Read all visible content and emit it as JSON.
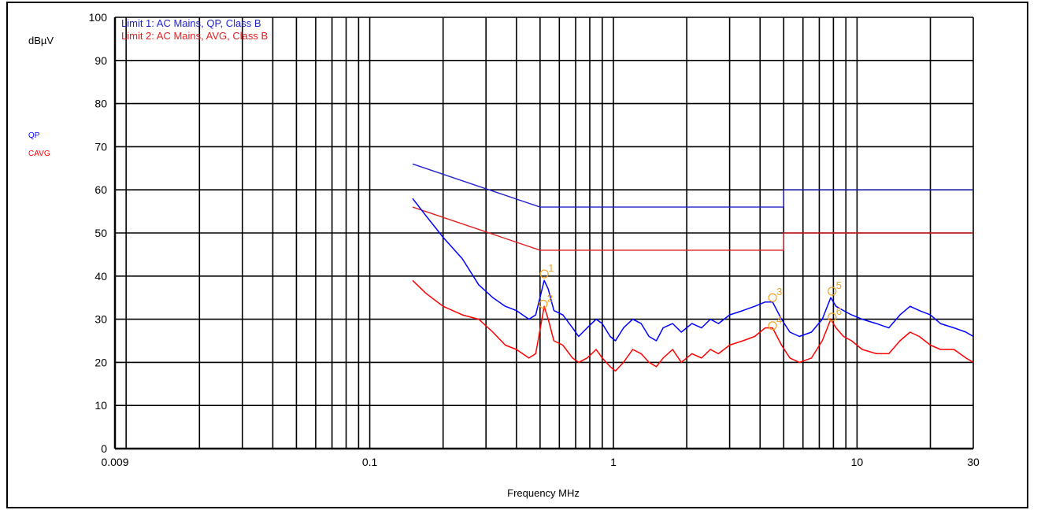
{
  "chart_data": {
    "type": "line",
    "xlabel": "Frequency MHz",
    "ylabel": "dBµV",
    "xscale": "log",
    "xlim": [
      0.009,
      30
    ],
    "ylim": [
      0,
      100
    ],
    "grid": true,
    "x_tick_labels": [
      {
        "value": 0.009,
        "label": "0.009"
      },
      {
        "value": 0.1,
        "label": "0.1"
      },
      {
        "value": 1,
        "label": "1"
      },
      {
        "value": 10,
        "label": "10"
      },
      {
        "value": 30,
        "label": "30"
      }
    ],
    "y_ticks": [
      0,
      10,
      20,
      30,
      40,
      50,
      60,
      70,
      80,
      90,
      100
    ],
    "legend": {
      "placement": "top-left",
      "entries": [
        {
          "label": "Limit 1: AC Mains, QP, Class B",
          "color": "#2222cc"
        },
        {
          "label": "Limit 2: AC Mains, AVG, Class B",
          "color": "#dd2222"
        }
      ]
    },
    "trace_legend": [
      {
        "label": "QP",
        "color": "#0000ff"
      },
      {
        "label": "CAVG",
        "color": "#ff0000"
      }
    ],
    "limits": [
      {
        "color": "#2222cc",
        "points": [
          [
            0.15,
            66
          ],
          [
            0.5,
            56
          ],
          [
            5,
            56
          ],
          [
            5,
            60
          ],
          [
            30,
            60
          ]
        ]
      },
      {
        "color": "#dd2222",
        "points": [
          [
            0.15,
            56
          ],
          [
            0.5,
            46
          ],
          [
            5,
            46
          ],
          [
            5,
            50
          ],
          [
            30,
            50
          ]
        ]
      }
    ],
    "series": [
      {
        "color": "#0000ff",
        "points": [
          [
            0.15,
            58
          ],
          [
            0.17,
            54
          ],
          [
            0.2,
            49
          ],
          [
            0.24,
            44
          ],
          [
            0.28,
            38
          ],
          [
            0.32,
            35
          ],
          [
            0.36,
            33
          ],
          [
            0.4,
            32
          ],
          [
            0.45,
            30
          ],
          [
            0.48,
            31
          ],
          [
            0.52,
            39
          ],
          [
            0.54,
            37
          ],
          [
            0.57,
            32
          ],
          [
            0.62,
            31
          ],
          [
            0.68,
            28
          ],
          [
            0.72,
            26
          ],
          [
            0.78,
            28
          ],
          [
            0.85,
            30
          ],
          [
            0.9,
            29
          ],
          [
            0.97,
            26
          ],
          [
            1.02,
            25
          ],
          [
            1.1,
            28
          ],
          [
            1.2,
            30
          ],
          [
            1.3,
            29
          ],
          [
            1.4,
            26
          ],
          [
            1.5,
            25
          ],
          [
            1.6,
            28
          ],
          [
            1.75,
            29
          ],
          [
            1.9,
            27
          ],
          [
            2.1,
            29
          ],
          [
            2.3,
            28
          ],
          [
            2.5,
            30
          ],
          [
            2.7,
            29
          ],
          [
            3.0,
            31
          ],
          [
            3.4,
            32
          ],
          [
            3.8,
            33
          ],
          [
            4.2,
            34
          ],
          [
            4.5,
            34
          ],
          [
            4.9,
            30
          ],
          [
            5.3,
            27
          ],
          [
            5.8,
            26
          ],
          [
            6.5,
            27
          ],
          [
            7.2,
            30
          ],
          [
            7.8,
            35
          ],
          [
            8.2,
            33
          ],
          [
            8.8,
            32
          ],
          [
            9.5,
            31
          ],
          [
            10.5,
            30
          ],
          [
            12,
            29
          ],
          [
            13.5,
            28
          ],
          [
            15,
            31
          ],
          [
            16.5,
            33
          ],
          [
            18,
            32
          ],
          [
            20,
            31
          ],
          [
            22,
            29
          ],
          [
            25,
            28
          ],
          [
            28,
            27
          ],
          [
            30,
            26
          ]
        ]
      },
      {
        "color": "#ff0000",
        "points": [
          [
            0.15,
            39
          ],
          [
            0.17,
            36
          ],
          [
            0.2,
            33
          ],
          [
            0.24,
            31
          ],
          [
            0.28,
            30
          ],
          [
            0.32,
            27
          ],
          [
            0.36,
            24
          ],
          [
            0.4,
            23
          ],
          [
            0.45,
            21
          ],
          [
            0.48,
            22
          ],
          [
            0.52,
            33
          ],
          [
            0.54,
            30
          ],
          [
            0.57,
            25
          ],
          [
            0.62,
            24
          ],
          [
            0.68,
            21
          ],
          [
            0.72,
            20
          ],
          [
            0.78,
            21
          ],
          [
            0.85,
            23
          ],
          [
            0.9,
            21
          ],
          [
            0.97,
            19
          ],
          [
            1.02,
            18
          ],
          [
            1.1,
            20
          ],
          [
            1.2,
            23
          ],
          [
            1.3,
            22
          ],
          [
            1.4,
            20
          ],
          [
            1.5,
            19
          ],
          [
            1.6,
            21
          ],
          [
            1.75,
            23
          ],
          [
            1.9,
            20
          ],
          [
            2.1,
            22
          ],
          [
            2.3,
            21
          ],
          [
            2.5,
            23
          ],
          [
            2.7,
            22
          ],
          [
            3.0,
            24
          ],
          [
            3.4,
            25
          ],
          [
            3.8,
            26
          ],
          [
            4.2,
            28
          ],
          [
            4.5,
            28
          ],
          [
            4.9,
            24
          ],
          [
            5.3,
            21
          ],
          [
            5.8,
            20
          ],
          [
            6.5,
            21
          ],
          [
            7.2,
            25
          ],
          [
            7.8,
            30
          ],
          [
            8.2,
            28
          ],
          [
            8.8,
            26
          ],
          [
            9.5,
            25
          ],
          [
            10.5,
            23
          ],
          [
            12,
            22
          ],
          [
            13.5,
            22
          ],
          [
            15,
            25
          ],
          [
            16.5,
            27
          ],
          [
            18,
            26
          ],
          [
            20,
            24
          ],
          [
            22,
            23
          ],
          [
            25,
            23
          ],
          [
            28,
            21
          ],
          [
            30,
            20
          ]
        ]
      }
    ],
    "markers": [
      {
        "label": "1",
        "x": 0.52,
        "y": 40.5
      },
      {
        "label": "2",
        "x": 0.515,
        "y": 33.5
      },
      {
        "label": "3",
        "x": 4.5,
        "y": 35
      },
      {
        "label": "4",
        "x": 4.5,
        "y": 28.5
      },
      {
        "label": "5",
        "x": 7.9,
        "y": 36.5
      },
      {
        "label": "6",
        "x": 7.9,
        "y": 30.5
      }
    ]
  }
}
